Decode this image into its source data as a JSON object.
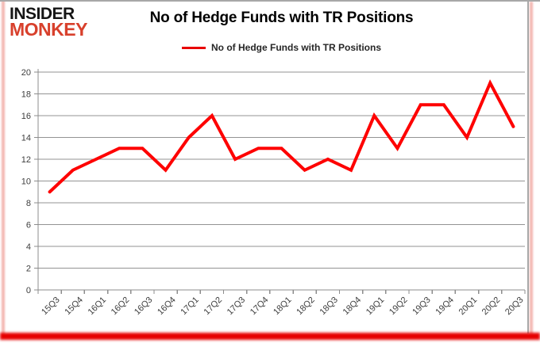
{
  "logo": {
    "line1": "INSIDER",
    "line2": "MONKEY",
    "accent_color": "#d8402c"
  },
  "title": "No of Hedge Funds with TR Positions",
  "legend": {
    "label": "No of Hedge Funds with TR Positions",
    "swatch_color": "#e80000"
  },
  "chart_data": {
    "type": "line",
    "title": "No of Hedge Funds with TR Positions",
    "categories": [
      "15Q3",
      "15Q4",
      "16Q1",
      "16Q2",
      "16Q3",
      "16Q4",
      "17Q1",
      "17Q2",
      "17Q3",
      "17Q4",
      "18Q1",
      "18Q2",
      "18Q3",
      "18Q4",
      "19Q1",
      "19Q2",
      "19Q3",
      "19Q4",
      "20Q1",
      "20Q2",
      "20Q3"
    ],
    "series": [
      {
        "name": "No of Hedge Funds with TR Positions",
        "color": "#fe0000",
        "values": [
          9,
          11,
          12,
          13,
          13,
          11,
          14,
          16,
          12,
          13,
          13,
          11,
          12,
          11,
          16,
          13,
          17,
          17,
          14,
          19,
          15
        ]
      }
    ],
    "xlabel": "",
    "ylabel": "",
    "ylim": [
      0,
      20
    ],
    "yticks": [
      0,
      2,
      4,
      6,
      8,
      10,
      12,
      14,
      16,
      18,
      20
    ],
    "grid": true,
    "legend_position": "top",
    "axis_color": "#8c8c8c",
    "gridline_color": "#939393",
    "label_color": "#3d3d3d",
    "line_width": 4
  }
}
